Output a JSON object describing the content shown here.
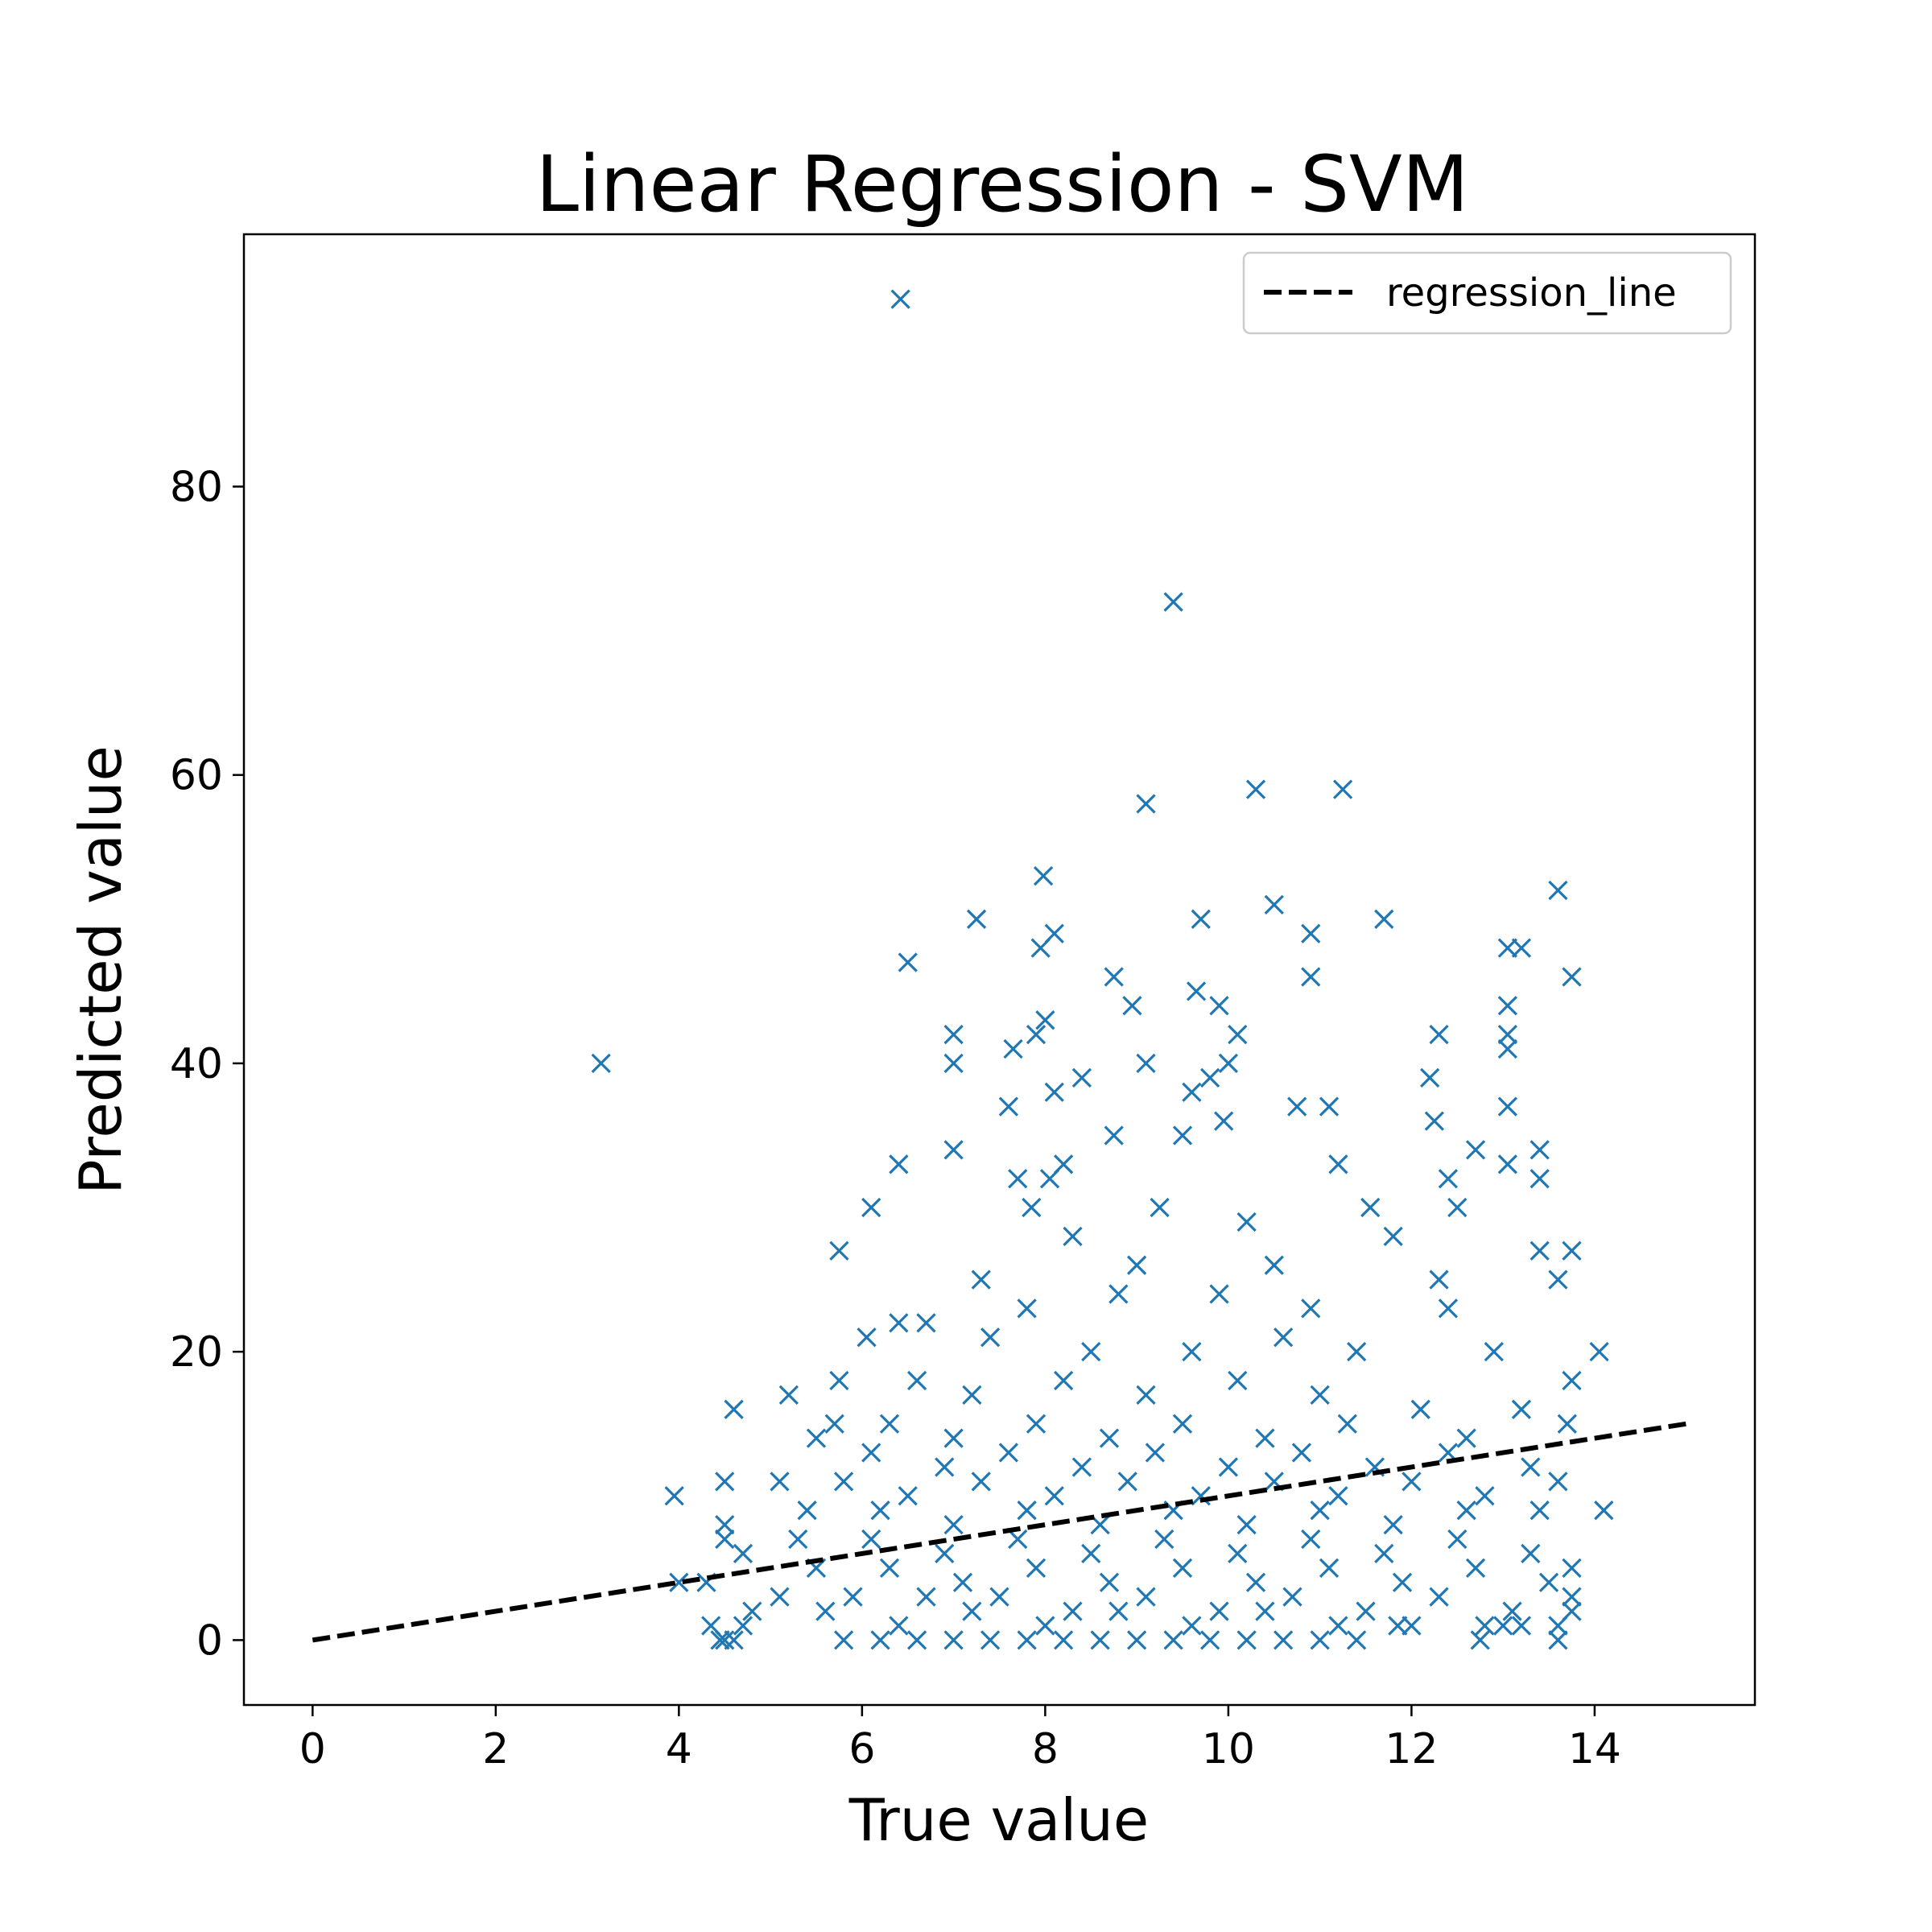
{
  "chart_data": {
    "type": "scatter",
    "title": "Linear Regression - SVM",
    "xlabel": "True value",
    "ylabel": "Predicted value",
    "xlim": [
      -0.75,
      15.75
    ],
    "ylim": [
      -4.5,
      97.5
    ],
    "xticks": [
      0,
      2,
      4,
      6,
      8,
      10,
      12,
      14
    ],
    "yticks": [
      0,
      20,
      40,
      60,
      80
    ],
    "grid": false,
    "legend": {
      "position": "top-right",
      "entries": [
        "regression_line"
      ]
    },
    "colors": {
      "points": "#1f77b4",
      "line": "#000000"
    },
    "series": [
      {
        "kind": "scatter",
        "marker": "x",
        "points": [
          [
            6.42,
            93
          ],
          [
            9.4,
            72
          ],
          [
            3.15,
            40
          ],
          [
            9.1,
            58
          ],
          [
            10.3,
            59
          ],
          [
            11.25,
            59
          ],
          [
            7.98,
            53
          ],
          [
            13.6,
            52
          ],
          [
            10.5,
            51
          ],
          [
            7.25,
            50
          ],
          [
            9.7,
            50
          ],
          [
            11.7,
            50
          ],
          [
            8.1,
            49
          ],
          [
            10.9,
            49
          ],
          [
            7.95,
            48
          ],
          [
            13.05,
            48
          ],
          [
            13.2,
            48
          ],
          [
            6.5,
            47
          ],
          [
            8.75,
            46
          ],
          [
            10.9,
            46
          ],
          [
            13.75,
            46
          ],
          [
            8.95,
            44
          ],
          [
            9.65,
            45
          ],
          [
            9.9,
            44
          ],
          [
            13.05,
            44
          ],
          [
            7.0,
            42
          ],
          [
            7.9,
            42
          ],
          [
            8.0,
            43
          ],
          [
            10.1,
            42
          ],
          [
            12.3,
            42
          ],
          [
            13.05,
            41
          ],
          [
            7.0,
            40
          ],
          [
            9.1,
            40
          ],
          [
            10.0,
            40
          ],
          [
            13.05,
            42
          ],
          [
            7.65,
            41
          ],
          [
            8.4,
            39
          ],
          [
            9.8,
            39
          ],
          [
            12.2,
            39
          ],
          [
            7.6,
            37
          ],
          [
            8.1,
            38
          ],
          [
            9.6,
            38
          ],
          [
            10.75,
            37
          ],
          [
            11.1,
            37
          ],
          [
            13.05,
            37
          ],
          [
            9.95,
            36
          ],
          [
            12.25,
            36
          ],
          [
            7.0,
            34
          ],
          [
            8.75,
            35
          ],
          [
            9.5,
            35
          ],
          [
            12.7,
            34
          ],
          [
            13.4,
            34
          ],
          [
            6.4,
            33
          ],
          [
            8.2,
            33
          ],
          [
            11.2,
            33
          ],
          [
            13.05,
            33
          ],
          [
            7.7,
            32
          ],
          [
            8.05,
            32
          ],
          [
            12.4,
            32
          ],
          [
            13.4,
            32
          ],
          [
            6.1,
            30
          ],
          [
            7.85,
            30
          ],
          [
            9.25,
            30
          ],
          [
            11.55,
            30
          ],
          [
            12.5,
            30
          ],
          [
            5.75,
            27
          ],
          [
            8.3,
            28
          ],
          [
            10.2,
            29
          ],
          [
            11.8,
            28
          ],
          [
            13.4,
            27
          ],
          [
            13.75,
            27
          ],
          [
            7.3,
            25
          ],
          [
            9.0,
            26
          ],
          [
            10.5,
            26
          ],
          [
            12.3,
            25
          ],
          [
            13.6,
            25
          ],
          [
            6.4,
            22
          ],
          [
            7.8,
            23
          ],
          [
            8.8,
            24
          ],
          [
            9.9,
            24
          ],
          [
            10.9,
            23
          ],
          [
            12.4,
            23
          ],
          [
            6.7,
            22
          ],
          [
            7.4,
            21
          ],
          [
            8.5,
            20
          ],
          [
            9.6,
            20
          ],
          [
            10.6,
            21
          ],
          [
            11.4,
            20
          ],
          [
            12.9,
            20
          ],
          [
            14.05,
            20
          ],
          [
            6.05,
            21
          ],
          [
            5.75,
            18
          ],
          [
            6.6,
            18
          ],
          [
            7.2,
            17
          ],
          [
            8.2,
            18
          ],
          [
            9.1,
            17
          ],
          [
            10.1,
            18
          ],
          [
            11.0,
            17
          ],
          [
            12.1,
            16
          ],
          [
            13.2,
            16
          ],
          [
            13.75,
            18
          ],
          [
            4.6,
            16
          ],
          [
            5.2,
            17
          ],
          [
            5.7,
            15
          ],
          [
            6.3,
            15
          ],
          [
            7.0,
            14
          ],
          [
            7.9,
            15
          ],
          [
            8.7,
            14
          ],
          [
            9.5,
            15
          ],
          [
            10.4,
            14
          ],
          [
            11.3,
            15
          ],
          [
            12.6,
            14
          ],
          [
            13.7,
            15
          ],
          [
            5.5,
            14
          ],
          [
            6.1,
            13
          ],
          [
            6.9,
            12
          ],
          [
            7.6,
            13
          ],
          [
            8.4,
            12
          ],
          [
            9.2,
            13
          ],
          [
            10.0,
            12
          ],
          [
            10.8,
            13
          ],
          [
            11.6,
            12
          ],
          [
            12.4,
            13
          ],
          [
            13.3,
            12
          ],
          [
            4.5,
            11
          ],
          [
            5.1,
            11
          ],
          [
            5.8,
            11
          ],
          [
            6.5,
            10
          ],
          [
            7.3,
            11
          ],
          [
            8.1,
            10
          ],
          [
            8.9,
            11
          ],
          [
            9.7,
            10
          ],
          [
            10.5,
            11
          ],
          [
            11.2,
            10
          ],
          [
            12.0,
            11
          ],
          [
            12.8,
            10
          ],
          [
            13.6,
            11
          ],
          [
            3.95,
            10
          ],
          [
            5.4,
            9
          ],
          [
            6.2,
            9
          ],
          [
            7.0,
            8
          ],
          [
            7.8,
            9
          ],
          [
            8.6,
            8
          ],
          [
            9.4,
            9
          ],
          [
            10.2,
            8
          ],
          [
            11.0,
            9
          ],
          [
            11.8,
            8
          ],
          [
            12.6,
            9
          ],
          [
            13.4,
            9
          ],
          [
            14.1,
            9
          ],
          [
            4.5,
            8
          ],
          [
            4.5,
            7
          ],
          [
            5.3,
            7
          ],
          [
            6.1,
            7
          ],
          [
            6.9,
            6
          ],
          [
            7.7,
            7
          ],
          [
            8.5,
            6
          ],
          [
            9.3,
            7
          ],
          [
            10.1,
            6
          ],
          [
            10.9,
            7
          ],
          [
            11.7,
            6
          ],
          [
            12.5,
            7
          ],
          [
            13.3,
            6
          ],
          [
            4.7,
            6
          ],
          [
            5.5,
            5
          ],
          [
            6.3,
            5
          ],
          [
            7.1,
            4
          ],
          [
            7.9,
            5
          ],
          [
            8.7,
            4
          ],
          [
            9.5,
            5
          ],
          [
            10.3,
            4
          ],
          [
            11.1,
            5
          ],
          [
            11.9,
            4
          ],
          [
            12.7,
            5
          ],
          [
            13.5,
            4
          ],
          [
            13.75,
            5
          ],
          [
            4.0,
            4
          ],
          [
            4.3,
            4
          ],
          [
            5.1,
            3
          ],
          [
            5.9,
            3
          ],
          [
            6.7,
            3
          ],
          [
            7.5,
            3
          ],
          [
            8.3,
            2
          ],
          [
            9.1,
            3
          ],
          [
            9.9,
            2
          ],
          [
            10.7,
            3
          ],
          [
            11.5,
            2
          ],
          [
            12.3,
            3
          ],
          [
            13.1,
            2
          ],
          [
            13.75,
            3
          ],
          [
            4.8,
            2
          ],
          [
            5.6,
            2
          ],
          [
            6.4,
            1
          ],
          [
            7.2,
            2
          ],
          [
            8.0,
            1
          ],
          [
            8.8,
            2
          ],
          [
            9.6,
            1
          ],
          [
            10.4,
            2
          ],
          [
            11.2,
            1
          ],
          [
            12.0,
            1
          ],
          [
            12.8,
            1
          ],
          [
            13.6,
            1
          ],
          [
            13.75,
            2
          ],
          [
            4.35,
            1
          ],
          [
            4.45,
            0
          ],
          [
            4.5,
            0
          ],
          [
            4.6,
            0
          ],
          [
            4.7,
            1
          ],
          [
            5.8,
            0
          ],
          [
            6.2,
            0
          ],
          [
            6.6,
            0
          ],
          [
            7.0,
            0
          ],
          [
            7.4,
            0
          ],
          [
            7.8,
            0
          ],
          [
            8.2,
            0
          ],
          [
            8.6,
            0
          ],
          [
            9.0,
            0
          ],
          [
            9.4,
            0
          ],
          [
            9.8,
            0
          ],
          [
            10.2,
            0
          ],
          [
            10.6,
            0
          ],
          [
            11.0,
            0
          ],
          [
            11.4,
            0
          ],
          [
            12.75,
            0
          ],
          [
            13.6,
            0
          ],
          [
            11.85,
            1
          ],
          [
            13.2,
            1
          ],
          [
            13.0,
            1
          ]
        ]
      },
      {
        "kind": "line",
        "name": "regression_line",
        "style": "dashed",
        "x": [
          0,
          15
        ],
        "y": [
          0,
          15
        ]
      }
    ]
  }
}
